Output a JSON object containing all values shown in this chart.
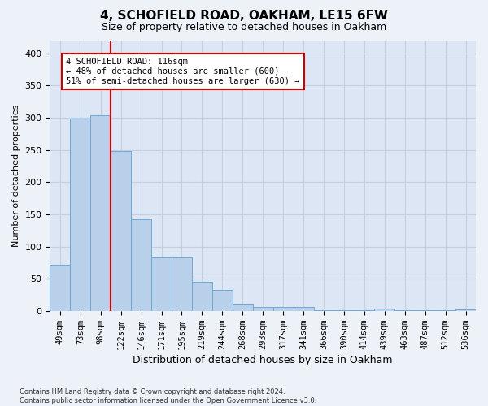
{
  "title": "4, SCHOFIELD ROAD, OAKHAM, LE15 6FW",
  "subtitle": "Size of property relative to detached houses in Oakham",
  "xlabel": "Distribution of detached houses by size in Oakham",
  "ylabel": "Number of detached properties",
  "categories": [
    "49sqm",
    "73sqm",
    "98sqm",
    "122sqm",
    "146sqm",
    "171sqm",
    "195sqm",
    "219sqm",
    "244sqm",
    "268sqm",
    "293sqm",
    "317sqm",
    "341sqm",
    "366sqm",
    "390sqm",
    "414sqm",
    "439sqm",
    "463sqm",
    "487sqm",
    "512sqm",
    "536sqm"
  ],
  "values": [
    72,
    299,
    304,
    248,
    143,
    83,
    83,
    45,
    32,
    10,
    6,
    6,
    6,
    1,
    1,
    1,
    4,
    1,
    1,
    1,
    2
  ],
  "bar_color": "#b8d0ea",
  "bar_edge_color": "#6fa8d4",
  "vline_x_index": 3,
  "vline_color": "#cc0000",
  "annotation_text": "4 SCHOFIELD ROAD: 116sqm\n← 48% of detached houses are smaller (600)\n51% of semi-detached houses are larger (630) →",
  "annotation_box_color": "#ffffff",
  "annotation_box_edge": "#cc0000",
  "ylim": [
    0,
    420
  ],
  "yticks": [
    0,
    50,
    100,
    150,
    200,
    250,
    300,
    350,
    400
  ],
  "grid_color": "#c5cfe0",
  "plot_bg_color": "#dce6f5",
  "fig_bg_color": "#edf1f8",
  "footnote": "Contains HM Land Registry data © Crown copyright and database right 2024.\nContains public sector information licensed under the Open Government Licence v3.0."
}
